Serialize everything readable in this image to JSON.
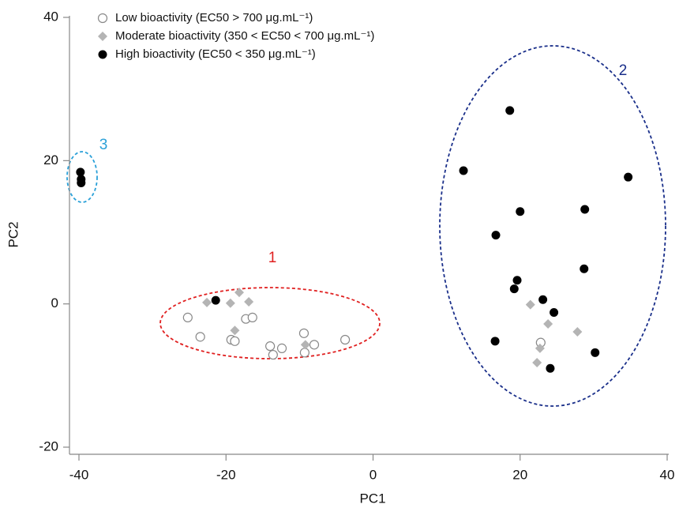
{
  "chart_data": {
    "type": "scatter",
    "x_label": "PC1",
    "y_label": "PC2",
    "xlim": [
      -40,
      40
    ],
    "ylim": [
      -20,
      40
    ],
    "xticks": [
      -40,
      -20,
      0,
      20,
      40
    ],
    "yticks": [
      -20,
      0,
      20,
      40
    ],
    "legend": "upper left",
    "series": [
      {
        "name": "Low bioactivity (EC50 > 700 μg.mL⁻¹)",
        "color": "#888888",
        "marker": "open-circle",
        "x": [
          -25.2,
          -23.5,
          -19.3,
          -18.8,
          -17.3,
          -16.4,
          -14.0,
          -13.6,
          -12.4,
          -9.4,
          -9.3,
          -8.0,
          -3.8,
          22.8
        ],
        "values": [
          -1.9,
          -4.6,
          -5.0,
          -5.2,
          -2.1,
          -1.9,
          -5.9,
          -7.1,
          -6.2,
          -4.1,
          -6.8,
          -5.7,
          -5.0,
          -5.4
        ]
      },
      {
        "name": "Moderate bioactivity (350 < EC50 < 700 μg.mL⁻¹)",
        "color": "#b4b4b4",
        "marker": "diamond",
        "x": [
          -22.6,
          -19.4,
          -18.2,
          -16.9,
          -18.8,
          -9.2,
          21.4,
          23.8,
          22.7,
          22.3,
          27.8
        ],
        "values": [
          0.2,
          0.1,
          1.6,
          0.3,
          -3.7,
          -5.7,
          -0.1,
          -2.8,
          -6.2,
          -8.2,
          -3.9
        ]
      },
      {
        "name": "High bioactivity (EC50 < 350 μg.mL⁻¹)",
        "color": "#000000",
        "marker": "circle",
        "x": [
          -39.8,
          -39.7,
          -39.7,
          -21.4,
          18.6,
          12.3,
          34.7,
          20.0,
          28.8,
          16.7,
          28.7,
          19.6,
          19.2,
          23.1,
          24.6,
          16.6,
          30.2,
          24.1
        ],
        "values": [
          18.4,
          17.4,
          16.9,
          0.5,
          27.0,
          18.6,
          17.7,
          12.9,
          13.2,
          9.6,
          4.9,
          3.3,
          2.1,
          0.6,
          -1.2,
          -5.2,
          -6.8,
          -9.0
        ]
      }
    ],
    "annotations": [
      {
        "text": "1",
        "color": "#e02020"
      },
      {
        "text": "2",
        "color": "#1a2f8a"
      },
      {
        "text": "3",
        "color": "#2aa0d8"
      }
    ]
  }
}
